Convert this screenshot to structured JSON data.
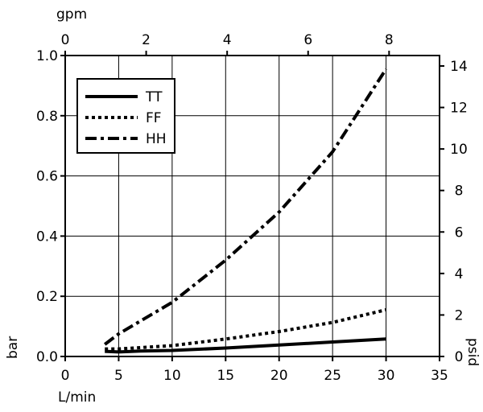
{
  "chart_data": {
    "type": "line",
    "xlabel": "L/min",
    "ylabel": "bar",
    "x2label": "gpm",
    "y2label": "psid",
    "xlim": [
      0,
      35
    ],
    "ylim": [
      0,
      1.0
    ],
    "x2lim": [
      0,
      9.2461
    ],
    "y2lim": [
      0,
      14.5038
    ],
    "xticks": [
      "0",
      "5",
      "10",
      "15",
      "20",
      "25",
      "30",
      "35"
    ],
    "yticks": [
      "0.0",
      "0.2",
      "0.4",
      "0.6",
      "0.8",
      "1.0"
    ],
    "x2ticks": [
      "0",
      "2",
      "4",
      "6",
      "8"
    ],
    "y2ticks": [
      "0",
      "2",
      "4",
      "6",
      "8",
      "10",
      "12",
      "14"
    ],
    "grid": true,
    "legend_position": "top-left",
    "series": [
      {
        "name": "TT",
        "style": "solid",
        "x": [
          3.7,
          5,
          7,
          10,
          15,
          20,
          25,
          30
        ],
        "y": [
          0.017,
          0.015,
          0.018,
          0.02,
          0.028,
          0.038,
          0.048,
          0.058
        ]
      },
      {
        "name": "FF",
        "style": "dotted",
        "x": [
          3.7,
          5,
          10,
          15,
          20,
          25,
          30
        ],
        "y": [
          0.025,
          0.025,
          0.036,
          0.058,
          0.083,
          0.113,
          0.155
        ]
      },
      {
        "name": "HH",
        "style": "dash-dot",
        "x": [
          3.7,
          5,
          10,
          15,
          20,
          25,
          30
        ],
        "y": [
          0.04,
          0.075,
          0.18,
          0.32,
          0.48,
          0.68,
          0.955
        ]
      }
    ]
  }
}
